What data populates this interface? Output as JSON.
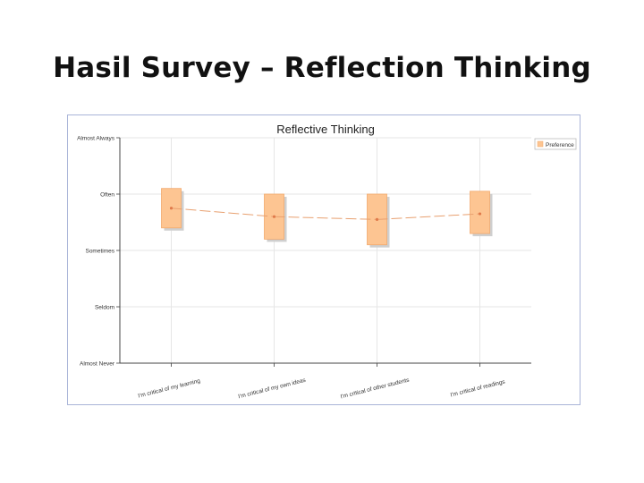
{
  "slide": {
    "title": "Hasil Survey – Reflection Thinking"
  },
  "chart_data": {
    "type": "box",
    "title": "Reflective Thinking",
    "xlabel": "",
    "ylabel": "",
    "y_categories": [
      "Almost Never",
      "Seldom",
      "Sometimes",
      "Often",
      "Almost Always"
    ],
    "ylim": [
      1,
      5
    ],
    "categories": [
      "I'm critical of my learning",
      "I'm critical of my own ideas",
      "I'm critical of other students",
      "I'm critical of readings"
    ],
    "series": [
      {
        "name": "Preference",
        "color": "#fdc592",
        "line_color": "#e8a070",
        "boxes": [
          {
            "q1": 3.4,
            "q3": 4.1,
            "mean": 3.75
          },
          {
            "q1": 3.2,
            "q3": 4.0,
            "mean": 3.6
          },
          {
            "q1": 3.1,
            "q3": 4.0,
            "mean": 3.55
          },
          {
            "q1": 3.3,
            "q3": 4.05,
            "mean": 3.65
          }
        ]
      }
    ],
    "grid": true,
    "legend_position": "top-right"
  }
}
